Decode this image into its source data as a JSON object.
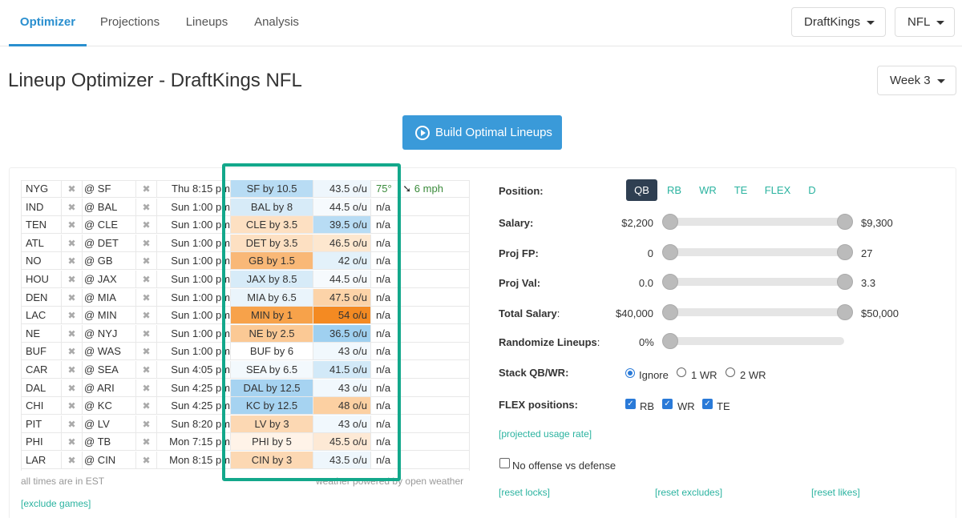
{
  "nav": {
    "tabs": [
      {
        "label": "Optimizer",
        "active": true
      },
      {
        "label": "Projections",
        "active": false
      },
      {
        "label": "Lineups",
        "active": false
      },
      {
        "label": "Analysis",
        "active": false
      }
    ],
    "site_dropdown": "DraftKings",
    "sport_dropdown": "NFL"
  },
  "page": {
    "title": "Lineup Optimizer - DraftKings NFL",
    "week_dropdown": "Week 3",
    "build_button": "Build Optimal Lineups"
  },
  "colors": {
    "accent": "#2a8fcf",
    "link": "#2bb3a0",
    "highlight_border": "#13a88b",
    "favored_blue": "#b8dcf4",
    "orange_strong": "#f7a24a",
    "orange_light": "#fcd3a8"
  },
  "games": [
    {
      "team": "NYG",
      "opp": "@ SF",
      "time": "Thu 8:15 pm",
      "line": "SF by 10.5",
      "ou": "43.5 o/u",
      "temp": "75°",
      "wind": "6 mph",
      "line_bg": "#b8dcf4",
      "ou_bg": "#eef6fc"
    },
    {
      "team": "IND",
      "opp": "@ BAL",
      "time": "Sun 1:00 pm",
      "line": "BAL by 8",
      "ou": "44.5 o/u",
      "temp": "n/a",
      "wind": "",
      "line_bg": "#d7ebf8",
      "ou_bg": "#f6fafd"
    },
    {
      "team": "TEN",
      "opp": "@ CLE",
      "time": "Sun 1:00 pm",
      "line": "CLE by 3.5",
      "ou": "39.5 o/u",
      "temp": "n/a",
      "wind": "",
      "line_bg": "#fde0c2",
      "ou_bg": "#b8dcf4"
    },
    {
      "team": "ATL",
      "opp": "@ DET",
      "time": "Sun 1:00 pm",
      "line": "DET by 3.5",
      "ou": "46.5 o/u",
      "temp": "n/a",
      "wind": "",
      "line_bg": "#fde0c2",
      "ou_bg": "#fde7cf"
    },
    {
      "team": "NO",
      "opp": "@ GB",
      "time": "Sun 1:00 pm",
      "line": "GB by 1.5",
      "ou": "42 o/u",
      "temp": "n/a",
      "wind": "",
      "line_bg": "#f9b877",
      "ou_bg": "#e3f1fa"
    },
    {
      "team": "HOU",
      "opp": "@ JAX",
      "time": "Sun 1:00 pm",
      "line": "JAX by 8.5",
      "ou": "44.5 o/u",
      "temp": "n/a",
      "wind": "",
      "line_bg": "#d7ebf8",
      "ou_bg": "#f6fafd"
    },
    {
      "team": "DEN",
      "opp": "@ MIA",
      "time": "Sun 1:00 pm",
      "line": "MIA by 6.5",
      "ou": "47.5 o/u",
      "temp": "n/a",
      "wind": "",
      "line_bg": "#eaf4fb",
      "ou_bg": "#fcd3a8"
    },
    {
      "team": "LAC",
      "opp": "@ MIN",
      "time": "Sun 1:00 pm",
      "line": "MIN by 1",
      "ou": "54 o/u",
      "temp": "n/a",
      "wind": "",
      "line_bg": "#f7a24a",
      "ou_bg": "#f48a22"
    },
    {
      "team": "NE",
      "opp": "@ NYJ",
      "time": "Sun 1:00 pm",
      "line": "NE by 2.5",
      "ou": "36.5 o/u",
      "temp": "n/a",
      "wind": "",
      "line_bg": "#fbc995",
      "ou_bg": "#9fd0f0"
    },
    {
      "team": "BUF",
      "opp": "@ WAS",
      "time": "Sun 1:00 pm",
      "line": "BUF by 6",
      "ou": "43 o/u",
      "temp": "n/a",
      "wind": "",
      "line_bg": "#ffffff",
      "ou_bg": "#f1f8fd"
    },
    {
      "team": "CAR",
      "opp": "@ SEA",
      "time": "Sun 4:05 pm",
      "line": "SEA by 6.5",
      "ou": "41.5 o/u",
      "temp": "n/a",
      "wind": "",
      "line_bg": "#f3f9fd",
      "ou_bg": "#d2e9f8"
    },
    {
      "team": "DAL",
      "opp": "@ ARI",
      "time": "Sun 4:25 pm",
      "line": "DAL by 12.5",
      "ou": "43 o/u",
      "temp": "n/a",
      "wind": "",
      "line_bg": "#a6d3f1",
      "ou_bg": "#f1f8fd"
    },
    {
      "team": "CHI",
      "opp": "@ KC",
      "time": "Sun 4:25 pm",
      "line": "KC by 12.5",
      "ou": "48 o/u",
      "temp": "n/a",
      "wind": "",
      "line_bg": "#a6d3f1",
      "ou_bg": "#fcd0a2"
    },
    {
      "team": "PIT",
      "opp": "@ LV",
      "time": "Sun 8:20 pm",
      "line": "LV by 3",
      "ou": "43 o/u",
      "temp": "n/a",
      "wind": "",
      "line_bg": "#fcd8b3",
      "ou_bg": "#f1f8fd"
    },
    {
      "team": "PHI",
      "opp": "@ TB",
      "time": "Mon 7:15 pm",
      "line": "PHI by 5",
      "ou": "45.5 o/u",
      "temp": "n/a",
      "wind": "",
      "line_bg": "#fff3e8",
      "ou_bg": "#fde9d5"
    },
    {
      "team": "LAR",
      "opp": "@ CIN",
      "time": "Mon 8:15 pm",
      "line": "CIN by 3",
      "ou": "43.5 o/u",
      "temp": "n/a",
      "wind": "",
      "line_bg": "#fcd8b3",
      "ou_bg": "#eef6fc"
    }
  ],
  "notes": {
    "timezone": "all times are in EST",
    "weather": "weather powered by open weather",
    "exclude_games": "[exclude games]"
  },
  "filters": {
    "position_label": "Position:",
    "positions": [
      {
        "label": "QB",
        "active": true
      },
      {
        "label": "RB",
        "active": false
      },
      {
        "label": "WR",
        "active": false
      },
      {
        "label": "TE",
        "active": false
      },
      {
        "label": "FLEX",
        "active": false
      },
      {
        "label": "D",
        "active": false
      }
    ],
    "sliders": [
      {
        "label": "Salary",
        "min_text": "$2,200",
        "max_text": "$9,300",
        "low_pct": 0,
        "high_pct": 100
      },
      {
        "label": "Proj FP",
        "min_text": "0",
        "max_text": "27",
        "low_pct": 0,
        "high_pct": 100
      },
      {
        "label": "Proj Val",
        "min_text": "0.0",
        "max_text": "3.3",
        "low_pct": 0,
        "high_pct": 100
      },
      {
        "label": "Total Salary",
        "min_text": "$40,000",
        "max_text": "$50,000",
        "low_pct": 0,
        "high_pct": 100
      }
    ],
    "randomize": {
      "label": "Randomize Lineups",
      "value": "0%",
      "pct": 0
    },
    "stack": {
      "label": "Stack QB/WR:",
      "options": [
        {
          "label": "Ignore",
          "selected": true
        },
        {
          "label": "1 WR",
          "selected": false
        },
        {
          "label": "2 WR",
          "selected": false
        }
      ]
    },
    "flex": {
      "label": "FLEX positions:",
      "options": [
        {
          "label": "RB",
          "checked": true
        },
        {
          "label": "WR",
          "checked": true
        },
        {
          "label": "TE",
          "checked": true
        }
      ]
    },
    "usage_link": "[projected usage rate]",
    "no_offense_vs_defense": "No offense vs defense",
    "reset_locks": "[reset locks]",
    "reset_excludes": "[reset excludes]",
    "reset_likes": "[reset likes]"
  }
}
